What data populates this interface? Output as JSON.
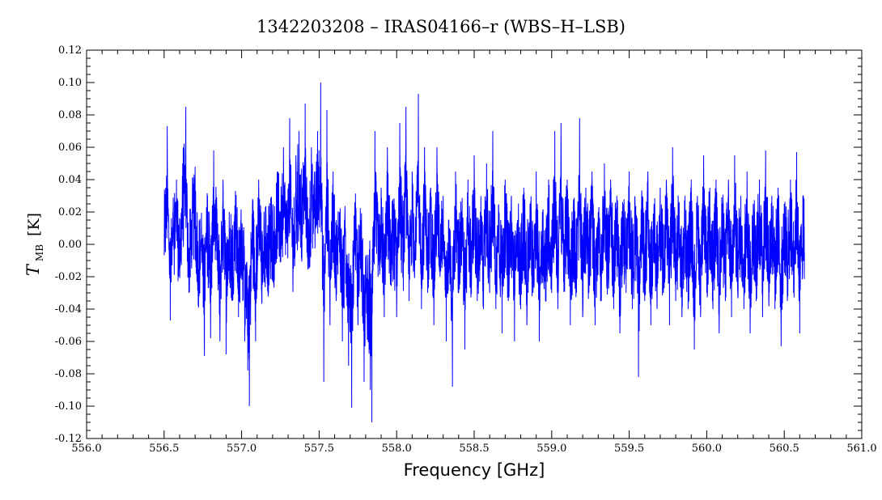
{
  "chart_data": {
    "type": "line",
    "title": "1342203208 – IRAS04166–r (WBS–H–LSB)",
    "xlabel": "Frequency [GHz]",
    "ylabel": {
      "symbol": "T",
      "subscript": "MB",
      "unit": "[K]"
    },
    "xlim": [
      556.0,
      561.0
    ],
    "ylim": [
      -0.12,
      0.12
    ],
    "x_ticks": [
      "556.0",
      "556.5",
      "557.0",
      "557.5",
      "558.0",
      "558.5",
      "559.0",
      "559.5",
      "560.0",
      "560.5",
      "561.0"
    ],
    "y_ticks": [
      "-0.12",
      "-0.10",
      "-0.08",
      "-0.06",
      "-0.04",
      "-0.02",
      "0.00",
      "0.02",
      "0.04",
      "0.06",
      "0.08",
      "0.10",
      "0.12"
    ],
    "grid": false,
    "series": [
      {
        "color": "#0000ff",
        "x_range": [
          556.5,
          560.63
        ],
        "points": [
          [
            556.5,
            -0.005
          ],
          [
            556.52,
            0.073
          ],
          [
            556.54,
            -0.047
          ],
          [
            556.56,
            0.015
          ],
          [
            556.58,
            0.04
          ],
          [
            556.6,
            -0.02
          ],
          [
            556.62,
            0.05
          ],
          [
            556.64,
            0.085
          ],
          [
            556.66,
            -0.03
          ],
          [
            556.68,
            0.02
          ],
          [
            556.7,
            0.048
          ],
          [
            556.72,
            -0.038
          ],
          [
            556.74,
            0.005
          ],
          [
            556.76,
            -0.069
          ],
          [
            556.78,
            0.03
          ],
          [
            556.8,
            -0.058
          ],
          [
            556.82,
            0.058
          ],
          [
            556.84,
            -0.01
          ],
          [
            556.86,
            -0.06
          ],
          [
            556.88,
            0.04
          ],
          [
            556.9,
            -0.068
          ],
          [
            556.92,
            0.02
          ],
          [
            556.94,
            -0.035
          ],
          [
            556.96,
            0.033
          ],
          [
            556.98,
            -0.045
          ],
          [
            557.0,
            0.01
          ],
          [
            557.02,
            -0.06
          ],
          [
            557.04,
            -0.078
          ],
          [
            557.05,
            -0.1
          ],
          [
            557.07,
            0.025
          ],
          [
            557.09,
            -0.06
          ],
          [
            557.11,
            0.04
          ],
          [
            557.13,
            -0.035
          ],
          [
            557.15,
            0.005
          ],
          [
            557.17,
            -0.015
          ],
          [
            557.19,
            0.018
          ],
          [
            557.21,
            -0.005
          ],
          [
            557.23,
            0.045
          ],
          [
            557.25,
            0.02
          ],
          [
            557.27,
            0.06
          ],
          [
            557.29,
            0.008
          ],
          [
            557.31,
            0.078
          ],
          [
            557.33,
            -0.01
          ],
          [
            557.35,
            0.055
          ],
          [
            557.37,
            0.07
          ],
          [
            557.39,
            0.035
          ],
          [
            557.41,
            0.087
          ],
          [
            557.43,
            -0.005
          ],
          [
            557.45,
            0.06
          ],
          [
            557.47,
            0.045
          ],
          [
            557.49,
            0.07
          ],
          [
            557.51,
            0.1
          ],
          [
            557.53,
            -0.085
          ],
          [
            557.55,
            0.083
          ],
          [
            557.57,
            -0.05
          ],
          [
            557.59,
            0.045
          ],
          [
            557.61,
            -0.035
          ],
          [
            557.63,
            0.02
          ],
          [
            557.65,
            -0.06
          ],
          [
            557.67,
            0.01
          ],
          [
            557.69,
            -0.075
          ],
          [
            557.71,
            -0.101
          ],
          [
            557.73,
            0.025
          ],
          [
            557.75,
            -0.05
          ],
          [
            557.77,
            0.015
          ],
          [
            557.79,
            -0.085
          ],
          [
            557.81,
            -0.05
          ],
          [
            557.83,
            -0.09
          ],
          [
            557.84,
            -0.11
          ],
          [
            557.86,
            0.07
          ],
          [
            557.88,
            -0.02
          ],
          [
            557.9,
            0.035
          ],
          [
            557.92,
            -0.045
          ],
          [
            557.94,
            0.06
          ],
          [
            557.96,
            -0.025
          ],
          [
            557.98,
            0.025
          ],
          [
            558.0,
            -0.045
          ],
          [
            558.02,
            0.075
          ],
          [
            558.04,
            -0.02
          ],
          [
            558.06,
            0.085
          ],
          [
            558.08,
            -0.035
          ],
          [
            558.1,
            0.045
          ],
          [
            558.12,
            -0.01
          ],
          [
            558.14,
            0.093
          ],
          [
            558.16,
            -0.04
          ],
          [
            558.18,
            0.06
          ],
          [
            558.2,
            -0.03
          ],
          [
            558.22,
            0.035
          ],
          [
            558.24,
            -0.05
          ],
          [
            558.26,
            0.06
          ],
          [
            558.28,
            -0.02
          ],
          [
            558.3,
            0.03
          ],
          [
            558.32,
            -0.06
          ],
          [
            558.34,
            0.01
          ],
          [
            558.36,
            -0.088
          ],
          [
            558.38,
            0.045
          ],
          [
            558.4,
            -0.03
          ],
          [
            558.42,
            0.02
          ],
          [
            558.44,
            -0.065
          ],
          [
            558.46,
            0.04
          ],
          [
            558.48,
            -0.03
          ],
          [
            558.5,
            0.055
          ],
          [
            558.52,
            -0.035
          ],
          [
            558.54,
            0.02
          ],
          [
            558.56,
            -0.04
          ],
          [
            558.58,
            0.05
          ],
          [
            558.6,
            -0.03
          ],
          [
            558.62,
            0.07
          ],
          [
            558.64,
            -0.04
          ],
          [
            558.66,
            0.02
          ],
          [
            558.68,
            -0.055
          ],
          [
            558.7,
            0.04
          ],
          [
            558.72,
            -0.035
          ],
          [
            558.74,
            0.03
          ],
          [
            558.76,
            -0.06
          ],
          [
            558.78,
            0.015
          ],
          [
            558.8,
            -0.04
          ],
          [
            558.82,
            0.035
          ],
          [
            558.84,
            -0.05
          ],
          [
            558.86,
            0.025
          ],
          [
            558.88,
            -0.03
          ],
          [
            558.9,
            0.045
          ],
          [
            558.92,
            -0.06
          ],
          [
            558.94,
            0.02
          ],
          [
            558.96,
            -0.035
          ],
          [
            558.98,
            0.04
          ],
          [
            559.0,
            -0.03
          ],
          [
            559.02,
            0.07
          ],
          [
            559.04,
            -0.04
          ],
          [
            559.06,
            0.075
          ],
          [
            559.08,
            -0.02
          ],
          [
            559.1,
            0.04
          ],
          [
            559.12,
            -0.05
          ],
          [
            559.14,
            0.025
          ],
          [
            559.16,
            -0.03
          ],
          [
            559.18,
            0.078
          ],
          [
            559.2,
            -0.045
          ],
          [
            559.22,
            0.035
          ],
          [
            559.24,
            -0.03
          ],
          [
            559.26,
            0.045
          ],
          [
            559.28,
            -0.05
          ],
          [
            559.3,
            0.02
          ],
          [
            559.32,
            -0.035
          ],
          [
            559.34,
            0.05
          ],
          [
            559.36,
            -0.025
          ],
          [
            559.38,
            0.04
          ],
          [
            559.4,
            -0.04
          ],
          [
            559.42,
            0.03
          ],
          [
            559.44,
            -0.055
          ],
          [
            559.46,
            0.025
          ],
          [
            559.48,
            -0.03
          ],
          [
            559.5,
            0.045
          ],
          [
            559.52,
            -0.04
          ],
          [
            559.54,
            0.02
          ],
          [
            559.56,
            -0.082
          ],
          [
            559.58,
            0.03
          ],
          [
            559.6,
            -0.035
          ],
          [
            559.62,
            0.045
          ],
          [
            559.64,
            -0.05
          ],
          [
            559.66,
            0.025
          ],
          [
            559.68,
            -0.04
          ],
          [
            559.7,
            0.035
          ],
          [
            559.72,
            -0.03
          ],
          [
            559.74,
            0.04
          ],
          [
            559.76,
            -0.05
          ],
          [
            559.78,
            0.06
          ],
          [
            559.8,
            -0.035
          ],
          [
            559.82,
            0.025
          ],
          [
            559.84,
            -0.045
          ],
          [
            559.86,
            0.03
          ],
          [
            559.88,
            -0.04
          ],
          [
            559.9,
            0.04
          ],
          [
            559.92,
            -0.065
          ],
          [
            559.94,
            0.03
          ],
          [
            559.96,
            -0.045
          ],
          [
            559.98,
            0.055
          ],
          [
            560.0,
            -0.03
          ],
          [
            560.02,
            0.035
          ],
          [
            560.04,
            -0.04
          ],
          [
            560.06,
            0.04
          ],
          [
            560.08,
            -0.055
          ],
          [
            560.1,
            0.025
          ],
          [
            560.12,
            -0.035
          ],
          [
            560.14,
            0.04
          ],
          [
            560.16,
            -0.045
          ],
          [
            560.18,
            0.055
          ],
          [
            560.2,
            -0.03
          ],
          [
            560.22,
            0.03
          ],
          [
            560.24,
            -0.04
          ],
          [
            560.26,
            0.045
          ],
          [
            560.28,
            -0.055
          ],
          [
            560.3,
            0.025
          ],
          [
            560.32,
            -0.03
          ],
          [
            560.34,
            0.04
          ],
          [
            560.36,
            -0.045
          ],
          [
            560.38,
            0.058
          ],
          [
            560.4,
            -0.035
          ],
          [
            560.42,
            0.03
          ],
          [
            560.44,
            -0.04
          ],
          [
            560.46,
            0.035
          ],
          [
            560.48,
            -0.063
          ],
          [
            560.5,
            0.025
          ],
          [
            560.52,
            -0.035
          ],
          [
            560.54,
            0.04
          ],
          [
            560.56,
            -0.03
          ],
          [
            560.58,
            0.057
          ],
          [
            560.6,
            -0.055
          ],
          [
            560.62,
            0.03
          ],
          [
            560.63,
            -0.005
          ]
        ]
      }
    ]
  }
}
